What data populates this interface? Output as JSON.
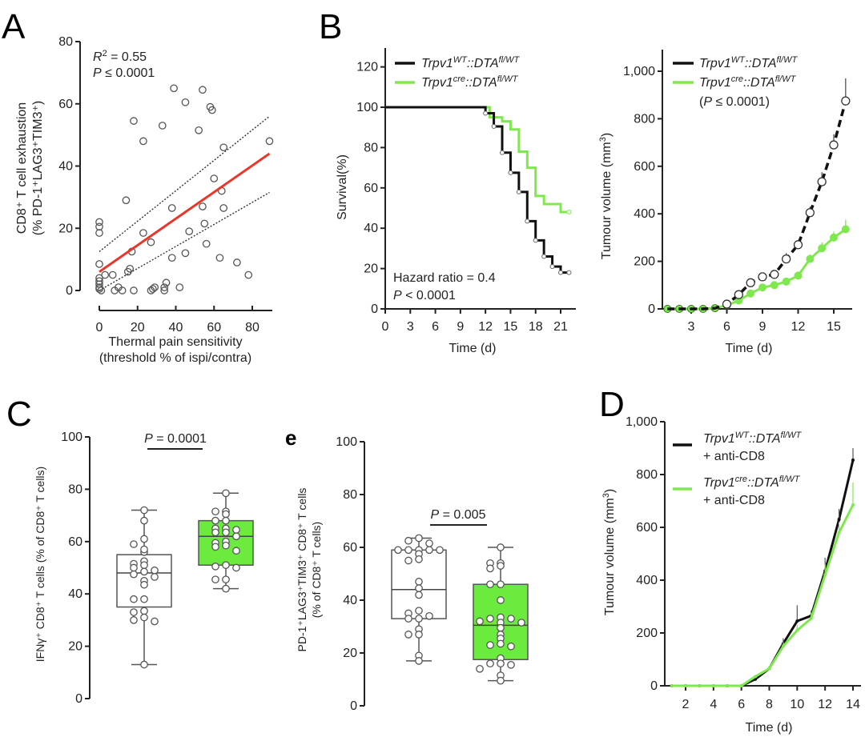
{
  "figure": {
    "panels": [
      "A",
      "B",
      "C",
      "e",
      "D"
    ]
  },
  "colors": {
    "green": "#7FE84F",
    "green_fill": "#6BEB3E",
    "black": "#111111",
    "red": "#E8372A",
    "grey_marker": "#555555"
  },
  "chart_data": [
    {
      "id": "A",
      "type": "scatter",
      "panel_label": "A",
      "xlabel_line1": "Thermal pain sensitivity",
      "xlabel_line2": "(threshold % of ispi/contra)",
      "ylabel_line1": "CD8⁺ T cell exhaustion",
      "ylabel_line2": "(% PD-1⁺LAG3⁺TIM3⁺)",
      "xlim": [
        0,
        90
      ],
      "ylim": [
        0,
        80
      ],
      "xticks": [
        0,
        20,
        40,
        60,
        80
      ],
      "yticks": [
        0,
        20,
        40,
        60,
        80
      ],
      "annotation_r2": "R² = 0.55",
      "annotation_p": "P ≤ 0.0001",
      "fit_line": {
        "x": [
          0,
          89
        ],
        "y": [
          6,
          44
        ]
      },
      "ci_upper": {
        "x": [
          0,
          89
        ],
        "y": [
          12.5,
          56
        ]
      },
      "ci_lower": {
        "x": [
          0,
          89
        ],
        "y": [
          0,
          31.5
        ]
      },
      "points": [
        [
          0,
          22
        ],
        [
          0,
          20.5
        ],
        [
          0,
          18.5
        ],
        [
          0,
          8.5
        ],
        [
          0,
          4
        ],
        [
          0,
          3
        ],
        [
          0,
          2
        ],
        [
          0,
          1
        ],
        [
          0,
          0.5
        ],
        [
          1,
          0
        ],
        [
          3,
          5
        ],
        [
          7,
          5
        ],
        [
          8,
          0
        ],
        [
          10,
          1
        ],
        [
          12,
          0
        ],
        [
          14,
          29
        ],
        [
          15,
          6
        ],
        [
          16,
          7
        ],
        [
          17,
          12.5
        ],
        [
          18,
          54.5
        ],
        [
          18,
          0
        ],
        [
          23,
          48
        ],
        [
          23,
          18.5
        ],
        [
          27,
          15.5
        ],
        [
          27,
          0
        ],
        [
          28,
          0.5
        ],
        [
          29,
          1
        ],
        [
          33,
          53
        ],
        [
          34,
          1
        ],
        [
          34,
          0
        ],
        [
          35,
          2.5
        ],
        [
          38,
          10.5
        ],
        [
          38,
          26.5
        ],
        [
          39,
          65
        ],
        [
          42,
          1
        ],
        [
          45,
          60.5
        ],
        [
          45,
          12
        ],
        [
          47,
          19
        ],
        [
          52,
          51.5
        ],
        [
          54,
          64.5
        ],
        [
          54,
          27
        ],
        [
          55,
          21.5
        ],
        [
          56,
          15
        ],
        [
          58,
          59
        ],
        [
          59,
          58
        ],
        [
          60,
          36
        ],
        [
          63,
          10.5
        ],
        [
          64,
          32
        ],
        [
          65,
          26.5
        ],
        [
          65,
          46
        ],
        [
          72,
          9
        ],
        [
          78,
          5
        ],
        [
          89,
          48
        ]
      ]
    },
    {
      "id": "B-survival",
      "type": "line",
      "panel_label": "B",
      "xlabel": "Time (d)",
      "ylabel": "Survival(%)",
      "xlim": [
        0,
        22.5
      ],
      "ylim": [
        0,
        130
      ],
      "xticks": [
        0,
        3,
        6,
        9,
        12,
        15,
        18,
        21
      ],
      "yticks": [
        0,
        20,
        40,
        60,
        80,
        100,
        120
      ],
      "annotation_hr": "Hazard ratio = 0.4",
      "annotation_p": "P < 0.0001",
      "legend": [
        {
          "base": "Trpv1",
          "sup1": "WT",
          "mid": "::DTA",
          "sup2": "fl/WT",
          "color": "#111111"
        },
        {
          "base": "Trpv1",
          "sup1": "cre",
          "mid": "::DTA",
          "sup2": "fl/WT",
          "color": "#7FE84F"
        }
      ],
      "series": [
        {
          "name": "Trpv1WT::DTAfl/WT",
          "step_x": [
            0,
            12,
            12,
            13,
            13,
            14,
            14,
            15,
            15,
            16,
            16,
            17,
            17,
            18,
            18,
            19,
            19,
            20,
            20,
            21,
            21,
            22
          ],
          "step_y": [
            100,
            100,
            97,
            97,
            90.5,
            90.5,
            77.5,
            77.5,
            67.5,
            67.5,
            58,
            58,
            43.5,
            43.5,
            34,
            34,
            26,
            26,
            21,
            21,
            18,
            18
          ],
          "censor_x": [
            12,
            13,
            14,
            15,
            16,
            17,
            18,
            19,
            20,
            21,
            22
          ],
          "censor_y": [
            97,
            90.5,
            77.5,
            67.5,
            58,
            43.5,
            34,
            26,
            21,
            18,
            18
          ]
        },
        {
          "name": "Trpv1cre::DTAfl/WT",
          "step_x": [
            0,
            12.5,
            12.5,
            14,
            14,
            15,
            15,
            16,
            16,
            17,
            17,
            18,
            18,
            19,
            19,
            20,
            20,
            21,
            21,
            22
          ],
          "step_y": [
            100,
            100,
            95,
            95,
            93,
            93,
            89,
            89,
            78,
            78,
            70,
            70,
            56,
            56,
            52,
            52,
            52,
            52,
            48,
            48
          ],
          "censor_x": [
            22
          ],
          "censor_y": [
            48
          ]
        }
      ]
    },
    {
      "id": "B-tumour",
      "type": "line",
      "panel_label": "",
      "xlabel": "Time (d)",
      "ylabel": "Tumour volume (mm³)",
      "xlim": [
        0.5,
        16.5
      ],
      "ylim": [
        0,
        1100
      ],
      "xticks": [
        3,
        6,
        9,
        12,
        15
      ],
      "yticks": [
        0,
        200,
        400,
        600,
        800,
        1000
      ],
      "ytick_labels": [
        "0",
        "200",
        "400",
        "600",
        "800",
        "1,000"
      ],
      "legend": [
        {
          "base": "Trpv1",
          "sup1": "WT",
          "mid": "::DTA",
          "sup2": "fl/WT",
          "color": "#111111"
        },
        {
          "base": "Trpv1",
          "sup1": "cre",
          "mid": "::DTA",
          "sup2": "fl/WT",
          "color": "#7FE84F"
        }
      ],
      "legend_p": "(P ≤ 0.0001)",
      "x": [
        1,
        2,
        3,
        4,
        5,
        6,
        7,
        8,
        9,
        10,
        11,
        12,
        13,
        14,
        15,
        16
      ],
      "series": [
        {
          "name": "Trpv1WT::DTAfl/WT",
          "values": [
            0,
            0,
            0,
            0,
            3,
            20,
            60,
            110,
            135,
            145,
            210,
            270,
            405,
            535,
            690,
            875
          ],
          "errors": [
            0,
            0,
            0,
            0,
            5,
            5,
            10,
            10,
            15,
            15,
            25,
            20,
            25,
            40,
            45,
            95
          ],
          "style": "dashed"
        },
        {
          "name": "Trpv1cre::DTAfl/WT",
          "values": [
            0,
            0,
            0,
            0,
            3,
            15,
            35,
            65,
            90,
            100,
            115,
            140,
            210,
            255,
            300,
            335
          ],
          "errors": [
            0,
            0,
            0,
            0,
            3,
            3,
            5,
            8,
            10,
            10,
            12,
            15,
            20,
            25,
            25,
            40
          ],
          "style": "solid"
        }
      ]
    },
    {
      "id": "C",
      "type": "box",
      "panel_label": "C",
      "ylabel": "IFNγ⁺ CD8⁺ T cells (% of CD8⁺ T cells)",
      "ylim": [
        0,
        100
      ],
      "yticks": [
        0,
        20,
        40,
        60,
        80,
        100
      ],
      "p_label": "P = 0.0001",
      "groups": [
        {
          "name": "Trpv1WT::DTAfl/WT",
          "fill": "#ffffff",
          "min": 13,
          "q1": 35,
          "median": 48,
          "q3": 55,
          "max": 72,
          "points": [
            72,
            68,
            61,
            59,
            56,
            57,
            52.5,
            51.5,
            51,
            50,
            49,
            48.5,
            47.5,
            46.5,
            45,
            43.5,
            38,
            38,
            33.5,
            33,
            31,
            30,
            29.5,
            13
          ]
        },
        {
          "name": "Trpv1cre::DTAfl/WT",
          "fill": "#6BEB3E",
          "min": 42,
          "q1": 51,
          "median": 62,
          "q3": 68,
          "max": 78.5,
          "points": [
            78.5,
            71.5,
            71.5,
            70.5,
            68,
            68,
            65,
            65,
            64.5,
            63.5,
            63.5,
            62,
            60,
            59.5,
            58.5,
            58,
            56.5,
            51,
            50.5,
            50,
            45.5,
            45.5,
            42
          ]
        }
      ]
    },
    {
      "id": "e",
      "type": "box",
      "panel_label": "e",
      "ylabel_line1": "PD-1⁺LAG3⁺TIM3⁺ CD8⁺ T cells",
      "ylabel_line2": "(% of CD8⁺ T cells)",
      "ylim": [
        0,
        100
      ],
      "yticks": [
        0,
        20,
        40,
        60,
        80,
        100
      ],
      "p_label": "P = 0.005",
      "groups": [
        {
          "name": "Trpv1WT::DTAfl/WT",
          "fill": "#ffffff",
          "min": 17,
          "q1": 33,
          "median": 44,
          "q3": 59,
          "max": 63.5,
          "points": [
            63.5,
            62.5,
            61.5,
            59,
            59,
            59,
            59,
            59,
            57.5,
            55.5,
            55,
            47,
            44.5,
            42,
            36,
            35,
            34,
            33,
            33,
            29,
            27,
            27,
            19,
            17
          ]
        },
        {
          "name": "Trpv1cre::DTAfl/WT",
          "fill": "#6BEB3E",
          "min": 9.5,
          "q1": 17.5,
          "median": 30.5,
          "q3": 46,
          "max": 60,
          "points": [
            60,
            54,
            54,
            53,
            52,
            46,
            46,
            40,
            33.5,
            33,
            33,
            32,
            31.5,
            31.5,
            29.5,
            27,
            25.5,
            23.5,
            23,
            22.5,
            18,
            16,
            16,
            15.5,
            14,
            11.5,
            9.5
          ]
        }
      ]
    },
    {
      "id": "D",
      "type": "line",
      "panel_label": "D",
      "xlabel": "Time (d)",
      "ylabel": "Tumour volume (mm³)",
      "xlim": [
        0.5,
        14.5
      ],
      "ylim": [
        0,
        1000
      ],
      "xticks": [
        2,
        4,
        6,
        8,
        10,
        12,
        14
      ],
      "yticks": [
        0,
        200,
        400,
        600,
        800,
        1000
      ],
      "ytick_labels": [
        "0",
        "200",
        "400",
        "600",
        "800",
        "1,000"
      ],
      "legend": [
        {
          "base": "Trpv1",
          "sup1": "WT",
          "mid": "::DTA",
          "sup2": "fl/WT",
          "line2": "+ anti-CD8",
          "color": "#111111"
        },
        {
          "base": "Trpv1",
          "sup1": "cre",
          "mid": "::DTA",
          "sup2": "fl/WT",
          "line2": "+ anti-CD8",
          "color": "#7FE84F"
        }
      ],
      "x": [
        1,
        2,
        3,
        4,
        5,
        6,
        7,
        8,
        9,
        10,
        11,
        12,
        13,
        14
      ],
      "series": [
        {
          "name": "Trpv1WT::DTAfl/WT + anti-CD8",
          "values": [
            0,
            0,
            0,
            0,
            0,
            0,
            25,
            65,
            160,
            245,
            265,
            435,
            630,
            855
          ],
          "errors": [
            0,
            0,
            0,
            0,
            0,
            0,
            5,
            10,
            20,
            60,
            20,
            50,
            40,
            45
          ]
        },
        {
          "name": "Trpv1cre::DTAfl/WT + anti-CD8",
          "values": [
            0,
            0,
            0,
            0,
            0,
            0,
            35,
            65,
            150,
            210,
            255,
            420,
            580,
            685
          ],
          "errors": [
            0,
            0,
            0,
            0,
            0,
            0,
            5,
            10,
            15,
            20,
            20,
            40,
            40,
            85
          ]
        }
      ]
    }
  ]
}
